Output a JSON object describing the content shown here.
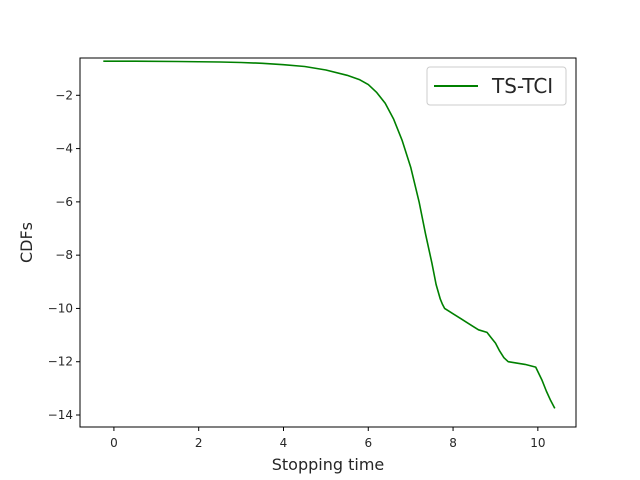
{
  "chart_data": {
    "type": "line",
    "xlabel": "Stopping time",
    "ylabel": "CDFs",
    "xlim": [
      -0.8,
      10.9
    ],
    "ylim": [
      -14.45,
      -0.6
    ],
    "xticks": [
      0,
      2,
      4,
      6,
      8,
      10
    ],
    "yticks": [
      -2,
      -4,
      -6,
      -8,
      -10,
      -12,
      -14
    ],
    "xtick_labels": [
      "0",
      "2",
      "4",
      "6",
      "8",
      "10"
    ],
    "ytick_labels": [
      "−2",
      "−4",
      "−6",
      "−8",
      "−10",
      "−12",
      "−14"
    ],
    "grid": false,
    "legend_position": "top-right",
    "series": [
      {
        "name": "TS-TCI",
        "color": "#008000",
        "x": [
          -0.25,
          0.5,
          1.5,
          2.5,
          3.0,
          3.5,
          4.0,
          4.5,
          5.0,
          5.5,
          5.8,
          6.0,
          6.2,
          6.4,
          6.6,
          6.8,
          7.0,
          7.2,
          7.35,
          7.5,
          7.6,
          7.7,
          7.75,
          7.8,
          7.9,
          8.0,
          8.1,
          8.2,
          8.3,
          8.45,
          8.6,
          8.8,
          8.9,
          9.0,
          9.1,
          9.2,
          9.3,
          9.5,
          9.7,
          9.95,
          10.1,
          10.2,
          10.3,
          10.4
        ],
        "y": [
          -0.72,
          -0.72,
          -0.73,
          -0.75,
          -0.77,
          -0.8,
          -0.85,
          -0.92,
          -1.05,
          -1.25,
          -1.42,
          -1.6,
          -1.9,
          -2.3,
          -2.9,
          -3.7,
          -4.7,
          -6.0,
          -7.2,
          -8.3,
          -9.1,
          -9.65,
          -9.85,
          -10.0,
          -10.1,
          -10.2,
          -10.3,
          -10.4,
          -10.5,
          -10.65,
          -10.8,
          -10.9,
          -11.1,
          -11.3,
          -11.6,
          -11.85,
          -12.0,
          -12.05,
          -12.1,
          -12.2,
          -12.7,
          -13.1,
          -13.45,
          -13.75
        ]
      }
    ]
  }
}
